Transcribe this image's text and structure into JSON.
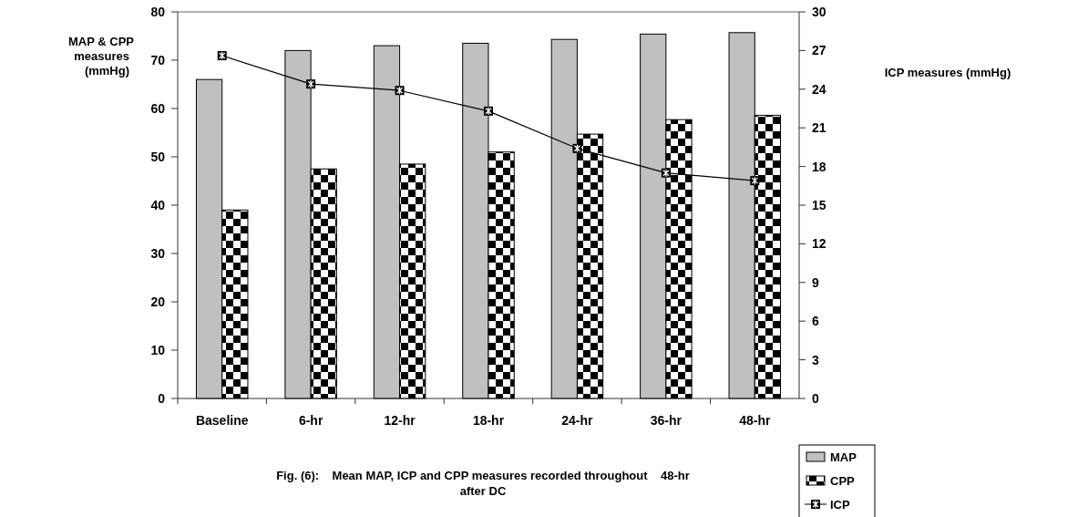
{
  "chart_data": {
    "type": "bar",
    "categories": [
      "Baseline",
      "6-hr",
      "12-hr",
      "18-hr",
      "24-hr",
      "36-hr",
      "48-hr"
    ],
    "series": [
      {
        "name": "MAP",
        "color": "#c0c0c0",
        "values": [
          66,
          72,
          73,
          73.5,
          74.3,
          75.4,
          75.7
        ]
      },
      {
        "name": "CPP",
        "color": "#000000",
        "values": [
          39,
          47.5,
          48.5,
          51,
          54.7,
          57.7,
          58.6
        ]
      },
      {
        "name": "ICP",
        "type": "line",
        "axis": "y2",
        "color": "#000000",
        "values": [
          26.6,
          24.4,
          23.9,
          22.3,
          19.4,
          17.5,
          16.9
        ]
      }
    ],
    "ylabel": "MAP & CPP measures (mmHg)",
    "y2label": "ICP measures (mmHg)",
    "ylim": [
      0,
      80
    ],
    "yticks": [
      0,
      10,
      20,
      30,
      40,
      50,
      60,
      70,
      80
    ],
    "y2lim": [
      0,
      30
    ],
    "y2ticks": [
      0,
      3,
      6,
      9,
      12,
      15,
      18,
      21,
      24,
      27,
      30
    ],
    "annotations": [
      "Fig. (6):    Mean MAP, ICP and CPP measures recorded throughout    48-hr after DC"
    ],
    "legend": "bottom right",
    "marker": "square",
    "line_style": "solid",
    "grid": false
  }
}
